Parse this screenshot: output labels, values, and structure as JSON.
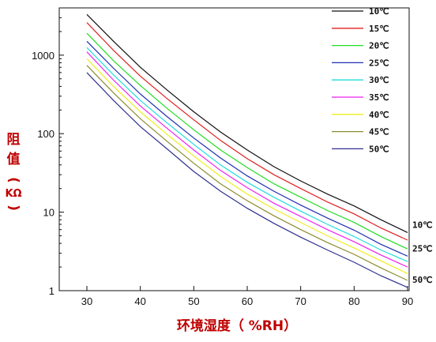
{
  "chart_data": {
    "type": "line",
    "xlabel": "环境湿度（ %RH）",
    "ylabel_lines": [
      "阻",
      "值",
      "(",
      "KΩ",
      ")"
    ],
    "x_ticks": [
      "30",
      "40",
      "50",
      "60",
      "70",
      "80",
      "90"
    ],
    "y_ticks": [
      "1",
      "10",
      "100",
      "1000"
    ],
    "y_scale": "log",
    "xlim": [
      25,
      90
    ],
    "ylim": [
      1,
      4000
    ],
    "grid": false,
    "legend_position": "top-right",
    "x": [
      30,
      35,
      40,
      45,
      50,
      55,
      60,
      65,
      70,
      75,
      80,
      85,
      90
    ],
    "series": [
      {
        "name": "10℃",
        "color": "#111111",
        "end_label": "10℃",
        "values": [
          3300,
          1500,
          700,
          360,
          190,
          105,
          62,
          38,
          25,
          17,
          12,
          8,
          5.5
        ]
      },
      {
        "name": "15℃",
        "color": "#e02020",
        "end_label": "",
        "values": [
          2600,
          1150,
          540,
          280,
          150,
          82,
          48,
          30,
          20,
          13.5,
          9.5,
          6.3,
          4.4
        ]
      },
      {
        "name": "20℃",
        "color": "#22dd22",
        "end_label": "",
        "values": [
          1900,
          850,
          410,
          210,
          112,
          62,
          37,
          23,
          15.5,
          10.5,
          7.4,
          4.9,
          3.4
        ]
      },
      {
        "name": "25℃",
        "color": "#2030b0",
        "end_label": "25℃",
        "values": [
          1500,
          680,
          320,
          165,
          88,
          49,
          29,
          18.5,
          12.3,
          8.4,
          5.9,
          3.9,
          2.75
        ]
      },
      {
        "name": "30℃",
        "color": "#20dddd",
        "end_label": "",
        "values": [
          1250,
          560,
          265,
          137,
          73,
          40,
          24,
          15.5,
          10.3,
          7,
          4.9,
          3.3,
          2.35
        ]
      },
      {
        "name": "35℃",
        "color": "#ee22ee",
        "end_label": "",
        "values": [
          1100,
          480,
          225,
          117,
          62,
          34,
          20.5,
          13,
          8.8,
          6,
          4.2,
          2.85,
          2.0
        ]
      },
      {
        "name": "40℃",
        "color": "#eeee22",
        "end_label": "",
        "values": [
          900,
          400,
          190,
          98,
          52,
          28.5,
          17,
          11,
          7.4,
          5,
          3.5,
          2.4,
          1.65
        ]
      },
      {
        "name": "45℃",
        "color": "#8c8c30",
        "end_label": "",
        "values": [
          740,
          330,
          155,
          80,
          42,
          23,
          14,
          9,
          6,
          4.1,
          2.9,
          1.95,
          1.35
        ]
      },
      {
        "name": "50℃",
        "color": "#303090",
        "end_label": "50℃",
        "values": [
          600,
          265,
          123,
          64,
          33,
          18.5,
          11.2,
          7.2,
          4.8,
          3.3,
          2.3,
          1.55,
          1.1
        ]
      }
    ]
  }
}
